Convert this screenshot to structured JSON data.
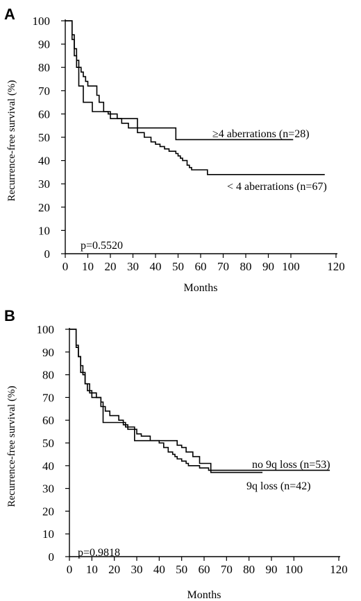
{
  "chart_data": [
    {
      "panel_label": "A",
      "type": "line",
      "xlabel": "Months",
      "ylabel": "Recurrence-free survival (%)",
      "xlim": [
        0,
        120
      ],
      "ylim": [
        0,
        100
      ],
      "x_ticks": [
        0,
        10,
        20,
        30,
        40,
        50,
        60,
        70,
        80,
        90,
        100,
        120
      ],
      "y_ticks": [
        0,
        10,
        20,
        30,
        40,
        50,
        60,
        70,
        80,
        90,
        100
      ],
      "annotation": "p=0.5520",
      "grid": false,
      "series": [
        {
          "name": "≥4 aberrations (n=28)",
          "x": [
            0,
            3,
            4,
            5,
            6,
            8,
            12,
            20,
            25,
            32,
            48,
            49,
            101
          ],
          "y": [
            100,
            92,
            85,
            80,
            72,
            65,
            61,
            58,
            58,
            54,
            54,
            49,
            49
          ]
        },
        {
          "name": "< 4 aberrations (n=67)",
          "x": [
            0,
            3,
            4,
            5,
            6,
            7,
            8,
            9,
            10,
            14,
            15,
            17,
            19,
            23,
            25,
            28,
            32,
            35,
            38,
            40,
            42,
            44,
            46,
            49,
            50,
            51,
            52,
            54,
            55,
            56,
            58,
            63,
            115
          ],
          "y": [
            100,
            94,
            88,
            83,
            80,
            78,
            76,
            74,
            72,
            68,
            65,
            61,
            60,
            58,
            56,
            54,
            52,
            50,
            48,
            47,
            46,
            45,
            44,
            43,
            42,
            41,
            40,
            38,
            37,
            36,
            36,
            34,
            34
          ]
        }
      ]
    },
    {
      "panel_label": "B",
      "type": "line",
      "xlabel": "Months",
      "ylabel": "Recurrence-free survival (%)",
      "xlim": [
        0,
        120
      ],
      "ylim": [
        0,
        100
      ],
      "x_ticks": [
        0,
        10,
        20,
        30,
        40,
        50,
        60,
        70,
        80,
        90,
        100,
        120
      ],
      "y_ticks": [
        0,
        10,
        20,
        30,
        40,
        50,
        60,
        70,
        80,
        90,
        100
      ],
      "annotation": "p=0.9818",
      "grid": false,
      "series": [
        {
          "name": "no 9q loss (n=53)",
          "x": [
            0,
            3,
            4,
            5,
            6,
            7,
            9,
            12,
            14,
            15,
            16,
            18,
            22,
            24,
            26,
            30,
            32,
            36,
            40,
            42,
            44,
            46,
            47,
            48,
            50,
            52,
            53,
            56,
            58,
            62,
            116
          ],
          "y": [
            100,
            93,
            88,
            84,
            80,
            76,
            72,
            70,
            68,
            66,
            64,
            62,
            60,
            58,
            56,
            54,
            53,
            51,
            50,
            48,
            46,
            45,
            44,
            43,
            42,
            41,
            40,
            40,
            39,
            38,
            38
          ]
        },
        {
          "name": "9q loss (n=42)",
          "x": [
            0,
            3,
            4,
            5,
            7,
            8,
            10,
            14,
            15,
            18,
            25,
            29,
            45,
            48,
            50,
            52,
            55,
            58,
            63,
            86
          ],
          "y": [
            100,
            92,
            88,
            81,
            76,
            73,
            70,
            66,
            59,
            59,
            57,
            51,
            51,
            49,
            48,
            46,
            44,
            41,
            37,
            37
          ]
        }
      ]
    }
  ]
}
